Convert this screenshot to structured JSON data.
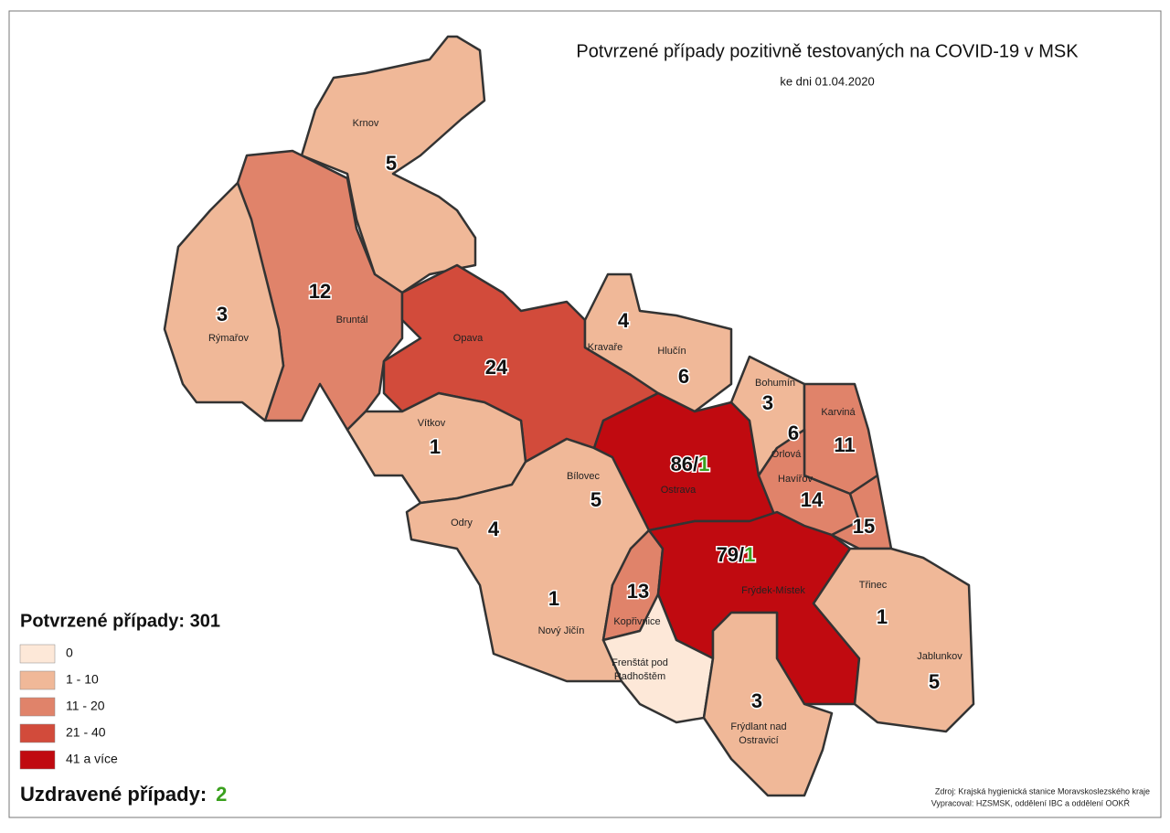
{
  "title": "Potvrzené případy pozitivně testovaných na COVID-19 v MSK",
  "subtitle": "ke dni 01.04.2020",
  "legend": {
    "title": "Potvrzené případy: 301",
    "items": [
      {
        "label": "0",
        "color": "#fde8d8"
      },
      {
        "label": "1 - 10",
        "color": "#f0b898"
      },
      {
        "label": "11 - 20",
        "color": "#e0836a"
      },
      {
        "label": "21 - 40",
        "color": "#d24b3b"
      },
      {
        "label": "41 a více",
        "color": "#c00a10"
      }
    ]
  },
  "recovered": {
    "label": "Uzdravené případy:",
    "value": 2,
    "color": "#3aa01e"
  },
  "districts": [
    {
      "name": "Krnov",
      "cases": 5,
      "color": "#f0b898"
    },
    {
      "name": "Bruntál",
      "cases": 12,
      "color": "#e0836a"
    },
    {
      "name": "Rýmařov",
      "cases": 3,
      "color": "#f0b898"
    },
    {
      "name": "Opava",
      "cases": 24,
      "color": "#d24b3b"
    },
    {
      "name": "Kravaře",
      "cases": 4,
      "color": "#f0b898"
    },
    {
      "name": "Hlučín",
      "cases": 6,
      "color": "#f0b898"
    },
    {
      "name": "Vítkov",
      "cases": 1,
      "color": "#f0b898"
    },
    {
      "name": "Bohumín",
      "cases": 3,
      "color": "#f0b898"
    },
    {
      "name": "Orlová",
      "cases": 6,
      "color": "#f0b898"
    },
    {
      "name": "Karviná",
      "cases": 11,
      "color": "#e0836a"
    },
    {
      "name": "Ostrava",
      "cases": 86,
      "sep": "/",
      "recovered": 1,
      "color": "#c00a10"
    },
    {
      "name": "Havířov",
      "cases": 14,
      "color": "#e0836a"
    },
    {
      "name": null,
      "cases": 15,
      "color": "#e0836a"
    },
    {
      "name": "Bílovec",
      "cases": 5,
      "color": "#f0b898"
    },
    {
      "name": "Odry",
      "cases": 4,
      "color": "#f0b898"
    },
    {
      "name": "Nový Jičín",
      "cases": 1,
      "color": "#f0b898"
    },
    {
      "name": "Kopřivnice",
      "cases": 13,
      "color": "#e0836a"
    },
    {
      "name": "Frýdek-Místek",
      "cases": 79,
      "sep": "/",
      "recovered": 1,
      "color": "#c00a10"
    },
    {
      "name": [
        "Frenštát pod",
        "Radhoštěm"
      ],
      "color": "#fde8d8"
    },
    {
      "name": "Třinec",
      "cases": 1,
      "color": "#f0b898"
    },
    {
      "name": "Jablunkov",
      "cases": 5,
      "color": "#f0b898"
    },
    {
      "name": [
        "Frýdlant nad",
        "Ostravicí"
      ],
      "cases": 3,
      "color": "#f0b898"
    }
  ],
  "source": [
    "Zdroj: Krajská hygienická stanice Moravskoslezského kraje",
    "Vypracoval: HZSMSK, oddělení IBC a oddělení OOKŘ"
  ]
}
